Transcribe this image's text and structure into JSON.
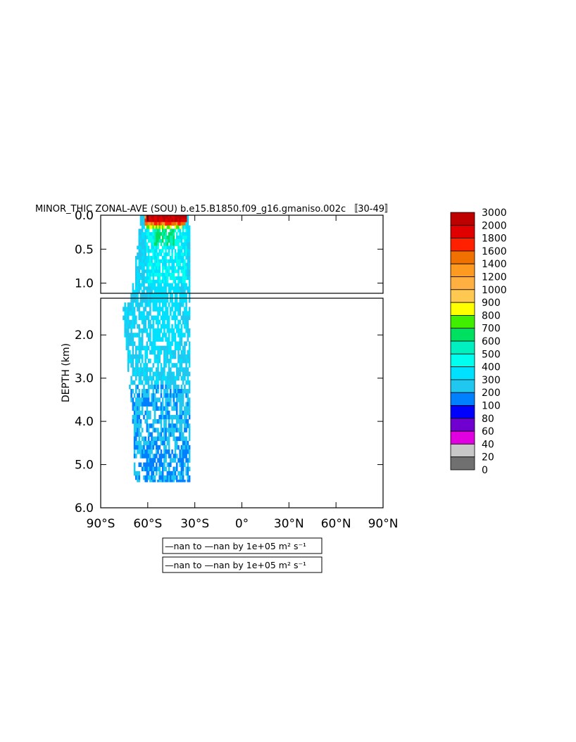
{
  "chart_data": {
    "type": "heatmap",
    "title": "MINOR_THIC ZONAL-AVE (SOU) b.e15.B1850.f09_g16.gmaniso.002c 〚30-49〛",
    "xlabel": "",
    "ylabel": "DEPTH (km)",
    "xlim": [
      -90,
      90
    ],
    "ylim": [
      6.0,
      0.0
    ],
    "y_break": 1.15,
    "x_ticks": [
      -90,
      -60,
      -30,
      0,
      30,
      60,
      90
    ],
    "x_tick_labels": [
      "90°S",
      "60°S",
      "30°S",
      "0°",
      "30°N",
      "60°N",
      "90°N"
    ],
    "y_ticks_upper": [
      0.0,
      0.5,
      1.0
    ],
    "y_tick_labels_upper": [
      "0.0",
      "0.5",
      "1.0"
    ],
    "y_ticks_lower": [
      2.0,
      3.0,
      4.0,
      5.0,
      6.0
    ],
    "y_tick_labels_lower": [
      "2.0",
      "3.0",
      "4.0",
      "5.0",
      "6.0"
    ],
    "colorbar": {
      "levels": [
        "3000",
        "2000",
        "1800",
        "1600",
        "1400",
        "1200",
        "1000",
        "900",
        "800",
        "700",
        "600",
        "500",
        "400",
        "300",
        "200",
        "100",
        "80",
        "60",
        "40",
        "20",
        "0"
      ],
      "colors": [
        "#bf0000",
        "#e00000",
        "#ff2000",
        "#f07000",
        "#ff9a20",
        "#ffb040",
        "#ffc850",
        "#ffff00",
        "#40ee00",
        "#00e060",
        "#00f0c0",
        "#00ffee",
        "#00e0ff",
        "#20c8f0",
        "#0080ff",
        "#0000ff",
        "#7000d0",
        "#e000e0",
        "#c8c8c8",
        "#707070"
      ]
    },
    "field": {
      "lat_range": [
        -77,
        -33
      ],
      "depth_range": [
        0.0,
        5.4
      ],
      "surface_max_level": "3000",
      "deep_level": "200"
    },
    "legend_boxes": [
      {
        "text": "—nan to —nan by 1e+05 m² s⁻¹"
      },
      {
        "text": "—nan to —nan by 1e+05 m² s⁻¹"
      }
    ]
  }
}
